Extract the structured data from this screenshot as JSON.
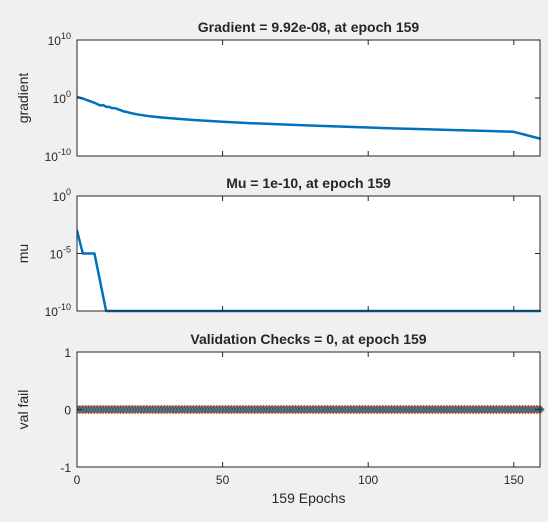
{
  "colors": {
    "background": "#f0f0f0",
    "axes_face": "#ffffff",
    "axes_edge": "#262626",
    "series": "#0072bd",
    "marker_edge": "#d95319"
  },
  "chart_data": [
    {
      "type": "line",
      "title": "Gradient = 9.92e-08, at epoch 159",
      "ylabel": "gradient",
      "xlabel": "",
      "yscale": "log",
      "xlim": [
        0,
        159
      ],
      "ylim": [
        1e-10,
        10000000000.0
      ],
      "yticks": [
        1e-10,
        1,
        10000000000.0
      ],
      "ytick_labels": [
        {
          "base": "10",
          "exp": "-10"
        },
        {
          "base": "10",
          "exp": "0"
        },
        {
          "base": "10",
          "exp": "10"
        }
      ],
      "xticks": [
        0,
        50,
        100,
        150
      ],
      "show_x_tick_labels": false,
      "grid": false,
      "series": [
        {
          "x": [
            0,
            2,
            4,
            6,
            8,
            9,
            10,
            11,
            12,
            13,
            14,
            15,
            16,
            17,
            19,
            21,
            23,
            25,
            30,
            35,
            40,
            50,
            60,
            70,
            80,
            90,
            100,
            110,
            120,
            130,
            140,
            150,
            159
          ],
          "y": [
            1.5,
            0.8,
            0.35,
            0.15,
            0.05,
            0.06,
            0.03,
            0.03,
            0.018,
            0.018,
            0.012,
            0.008,
            0.005,
            0.004,
            0.0022,
            0.0014,
            0.001,
            0.0007,
            0.0004,
            0.00025,
            0.00016,
            8e-05,
            4.5e-05,
            2.8e-05,
            1.8e-05,
            1.2e-05,
            8e-06,
            5.5e-06,
            4e-06,
            2.9e-06,
            2.1e-06,
            1.5e-06,
            9.92e-08
          ]
        }
      ]
    },
    {
      "type": "line",
      "title": "Mu = 1e-10, at epoch 159",
      "ylabel": "mu",
      "xlabel": "",
      "yscale": "log",
      "xlim": [
        0,
        159
      ],
      "ylim": [
        1e-10,
        1
      ],
      "yticks": [
        1e-10,
        1e-05,
        1
      ],
      "ytick_labels": [
        {
          "base": "10",
          "exp": "-10"
        },
        {
          "base": "10",
          "exp": "-5"
        },
        {
          "base": "10",
          "exp": "0"
        }
      ],
      "xticks": [
        0,
        50,
        100,
        150
      ],
      "show_x_tick_labels": false,
      "grid": false,
      "series": [
        {
          "x": [
            0,
            2,
            3,
            6,
            10,
            11,
            159
          ],
          "y": [
            0.001,
            1e-05,
            1e-05,
            1e-05,
            1e-10,
            1e-10,
            1e-10
          ]
        }
      ]
    },
    {
      "type": "scatter",
      "title": "Validation Checks = 0, at epoch 159",
      "ylabel": "val fail",
      "xlabel": "159 Epochs",
      "yscale": "linear",
      "xlim": [
        0,
        159
      ],
      "ylim": [
        -1,
        1
      ],
      "yticks": [
        -1,
        0,
        1
      ],
      "ytick_labels": [
        {
          "base": "-1",
          "exp": ""
        },
        {
          "base": "0",
          "exp": ""
        },
        {
          "base": "1",
          "exp": ""
        }
      ],
      "xticks": [
        0,
        50,
        100,
        150
      ],
      "xtick_labels": [
        "0",
        "50",
        "100",
        "150"
      ],
      "show_x_tick_labels": true,
      "grid": false,
      "marker": "diamond",
      "series": [
        {
          "x_start": 0,
          "x_end": 159,
          "y_constant": 0
        }
      ]
    }
  ]
}
